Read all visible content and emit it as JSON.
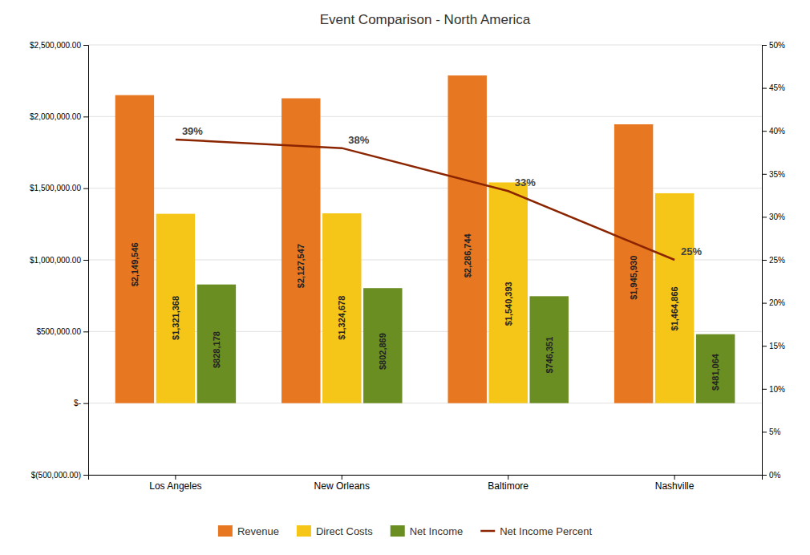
{
  "chart_data": {
    "type": "bar",
    "title": "Event Comparison - North America",
    "categories": [
      "Los Angeles",
      "New Orleans",
      "Baltimore",
      "Nashville"
    ],
    "series": [
      {
        "name": "Revenue",
        "color": "#E87722",
        "values": [
          2149546,
          2127547,
          2286744,
          1945930
        ],
        "value_labels": [
          "$2,149,546",
          "$2,127,547",
          "$2,286,744",
          "$1,945,930"
        ]
      },
      {
        "name": "Direct Costs",
        "color": "#F5C518",
        "values": [
          1321368,
          1324678,
          1540393,
          1464866
        ],
        "value_labels": [
          "$1,321,368",
          "$1,324,678",
          "$1,540,393",
          "$1,464,866"
        ]
      },
      {
        "name": "Net Income",
        "color": "#6B8E23",
        "values": [
          828178,
          802869,
          746351,
          481064
        ],
        "value_labels": [
          "$828,178",
          "$802,869",
          "$746,351",
          "$481,064"
        ]
      },
      {
        "name": "Net Income Percent",
        "type": "line",
        "axis": "y2",
        "color": "#8B2500",
        "values": [
          0.39,
          0.38,
          0.33,
          0.25
        ],
        "value_labels": [
          "39%",
          "38%",
          "33%",
          "25%"
        ]
      }
    ],
    "ylim": [
      -500000,
      2500000
    ],
    "yticks": [
      {
        "value": -500000,
        "label": "$(500,000.00)"
      },
      {
        "value": 0,
        "label": "$-"
      },
      {
        "value": 500000,
        "label": "$500,000.00"
      },
      {
        "value": 1000000,
        "label": "$1,000,000.00"
      },
      {
        "value": 1500000,
        "label": "$1,500,000.00"
      },
      {
        "value": 2000000,
        "label": "$2,000,000.00"
      },
      {
        "value": 2500000,
        "label": "$2,500,000.00"
      }
    ],
    "y2lim": [
      0.0,
      0.5
    ],
    "y2ticks": [
      {
        "value": 0.0,
        "label": "0%"
      },
      {
        "value": 0.05,
        "label": "5%"
      },
      {
        "value": 0.1,
        "label": "10%"
      },
      {
        "value": 0.15,
        "label": "15%"
      },
      {
        "value": 0.2,
        "label": "20%"
      },
      {
        "value": 0.25,
        "label": "25%"
      },
      {
        "value": 0.3,
        "label": "30%"
      },
      {
        "value": 0.35,
        "label": "35%"
      },
      {
        "value": 0.4,
        "label": "40%"
      },
      {
        "value": 0.45,
        "label": "45%"
      },
      {
        "value": 0.5,
        "label": "50%"
      }
    ],
    "grid": true,
    "legend": "bottom",
    "data_labels": true
  }
}
